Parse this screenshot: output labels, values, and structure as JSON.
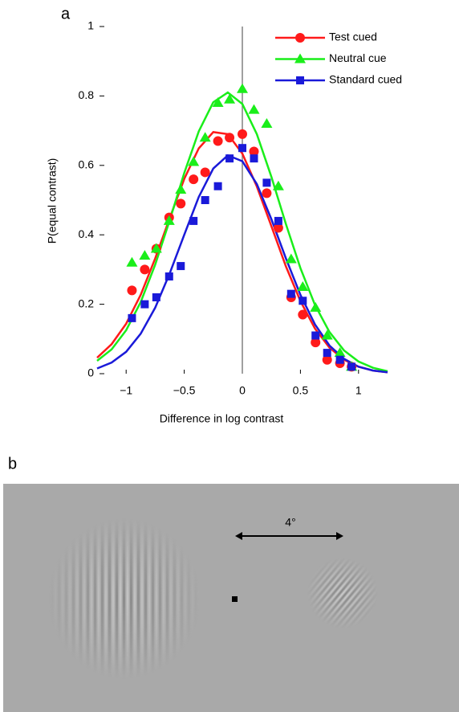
{
  "panel_labels": [
    "a",
    "b"
  ],
  "chart_data": {
    "type": "line",
    "y_label": "P(equal contrast)",
    "x_label": "Difference in log contrast",
    "xlim": [
      -1.25,
      1.25
    ],
    "ylim": [
      0,
      1
    ],
    "xticks": [
      {
        "value": -1,
        "label": "−1"
      },
      {
        "value": -0.5,
        "label": "−0.5"
      },
      0,
      0.5,
      1
    ],
    "yticks": [
      0,
      0.2,
      0.4,
      0.6,
      0.8,
      1
    ],
    "legend": "upper right",
    "reference_line_x": 0,
    "x": [
      -0.95,
      -0.84,
      -0.74,
      -0.63,
      -0.53,
      -0.42,
      -0.32,
      -0.21,
      -0.11,
      0,
      0.1,
      0.21,
      0.31,
      0.42,
      0.52,
      0.63,
      0.73,
      0.84,
      0.94
    ],
    "fit_x": [
      -1.25,
      -1.125,
      -1,
      -0.875,
      -0.75,
      -0.625,
      -0.5,
      -0.375,
      -0.25,
      -0.125,
      0,
      0.125,
      0.25,
      0.375,
      0.5,
      0.625,
      0.75,
      0.875,
      1,
      1.125,
      1.25
    ],
    "series": [
      {
        "name": "Test cued",
        "color": "#ff1a1a",
        "marker": "circle",
        "values": [
          0.24,
          0.3,
          0.36,
          0.45,
          0.49,
          0.56,
          0.58,
          0.67,
          0.68,
          0.69,
          0.64,
          0.52,
          0.42,
          0.22,
          0.17,
          0.09,
          0.04,
          0.03,
          0.02
        ],
        "fit": [
          0.046,
          0.085,
          0.144,
          0.227,
          0.332,
          0.448,
          0.561,
          0.649,
          0.696,
          0.69,
          0.634,
          0.539,
          0.425,
          0.309,
          0.209,
          0.13,
          0.075,
          0.04,
          0.02,
          0.009,
          0.004
        ]
      },
      {
        "name": "Neutral cue",
        "color": "#1aee1a",
        "marker": "triangle",
        "values": [
          0.32,
          0.34,
          0.36,
          0.44,
          0.53,
          0.61,
          0.68,
          0.78,
          0.79,
          0.82,
          0.76,
          0.72,
          0.54,
          0.33,
          0.25,
          0.19,
          0.11,
          0.06,
          0.02
        ],
        "fit": [
          0.037,
          0.07,
          0.125,
          0.206,
          0.314,
          0.442,
          0.578,
          0.698,
          0.782,
          0.81,
          0.777,
          0.69,
          0.567,
          0.431,
          0.304,
          0.198,
          0.12,
          0.067,
          0.035,
          0.017,
          0.007
        ]
      },
      {
        "name": "Standard cued",
        "color": "#1a1ad9",
        "marker": "square",
        "values": [
          0.16,
          0.2,
          0.22,
          0.28,
          0.31,
          0.44,
          0.5,
          0.54,
          0.62,
          0.65,
          0.62,
          0.55,
          0.44,
          0.23,
          0.21,
          0.11,
          0.06,
          0.04,
          0.02
        ],
        "fit": [
          0.015,
          0.032,
          0.063,
          0.115,
          0.19,
          0.289,
          0.4,
          0.509,
          0.591,
          0.629,
          0.612,
          0.546,
          0.445,
          0.332,
          0.227,
          0.142,
          0.081,
          0.043,
          0.02,
          0.009,
          0.004
        ]
      }
    ]
  },
  "stimulus": {
    "scale_label": "4°"
  }
}
